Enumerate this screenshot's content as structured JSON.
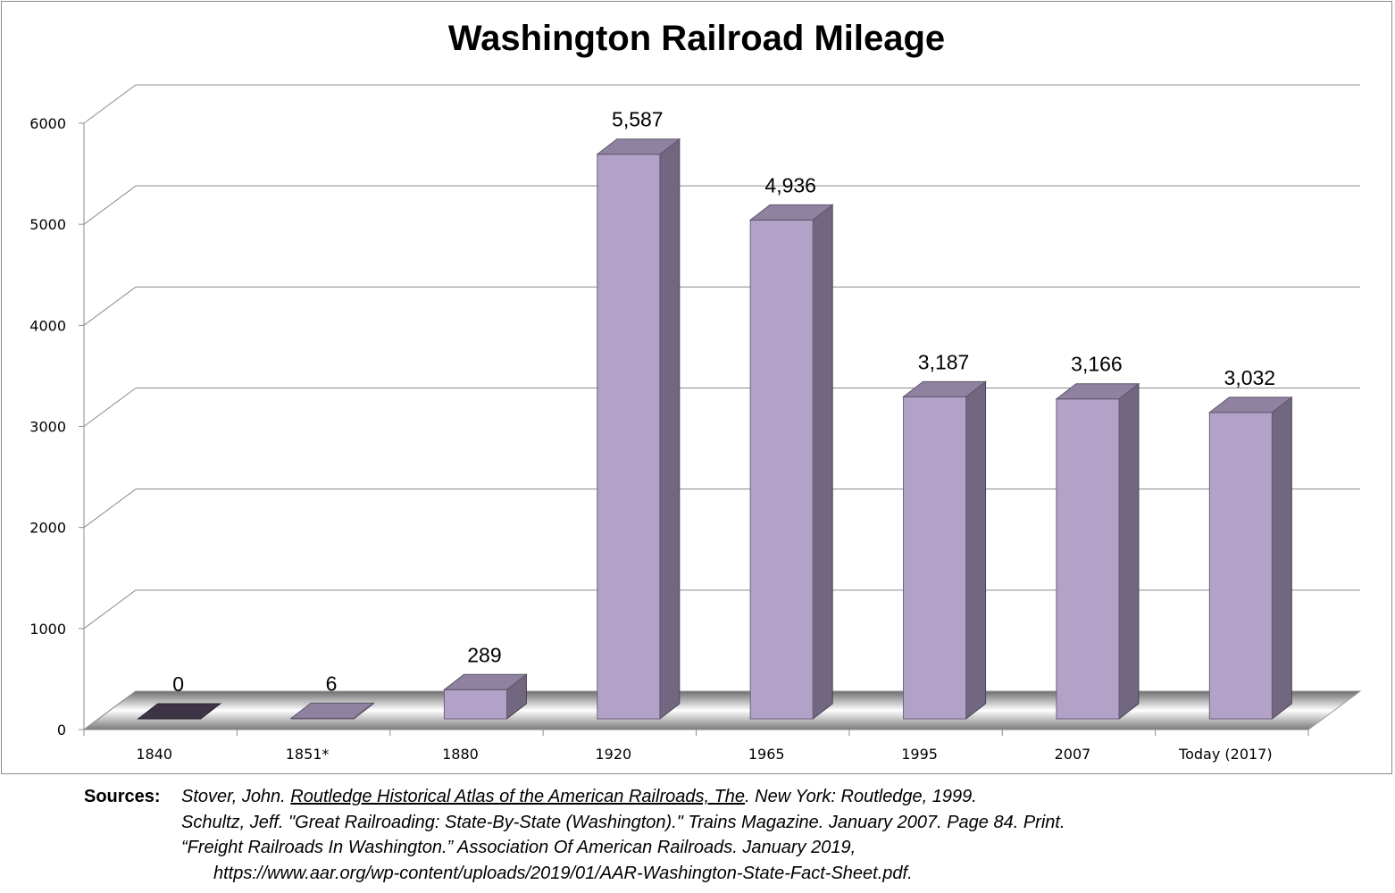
{
  "chart_data": {
    "type": "bar",
    "title": "Washington Railroad Mileage",
    "categories": [
      "1840",
      "1851*",
      "1880",
      "1920",
      "1965",
      "1995",
      "2007",
      "Today (2017)"
    ],
    "values": [
      0,
      6,
      289,
      5587,
      4936,
      3187,
      3166,
      3032
    ],
    "data_labels": [
      "0",
      "6",
      "289",
      "5,587",
      "4,936",
      "3,187",
      "3,166",
      "3,032"
    ],
    "yticks": [
      "0",
      "1000",
      "2000",
      "3000",
      "4000",
      "5000",
      "6000"
    ],
    "ylim": [
      0,
      6000
    ],
    "xlabel": "",
    "ylabel": "",
    "grid": true,
    "style": "3d-column",
    "colors": {
      "bar_front": "#b3a2c7",
      "bar_top": "#8f82a0",
      "bar_side": "#726780",
      "zero_bar": "#3d3546",
      "gridline": "#8c8c8c"
    }
  },
  "sources": {
    "heading": "Sources:",
    "line1_prefix": "Stover, John. ",
    "line1_title": "Routledge Historical Atlas of the American Railroads, The",
    "line1_suffix": ". New York: Routledge, 1999.",
    "line2": "Schultz, Jeff. \"Great Railroading: State-By-State (Washington).\" Trains Magazine. January 2007. Page 84. Print.",
    "line3": "“Freight Railroads In Washington.” Association Of American Railroads. January 2019,",
    "line4": "https://www.aar.org/wp-content/uploads/2019/01/AAR-Washington-State-Fact-Sheet.pdf."
  }
}
